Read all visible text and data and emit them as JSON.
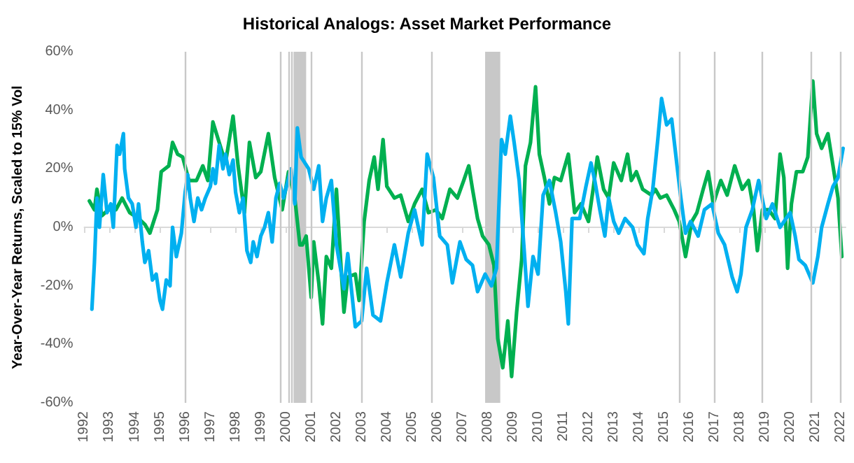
{
  "chart_data": {
    "type": "line",
    "title": "Historical Analogs: Asset Market Performance",
    "ylabel": "Year-Over-Year Returns, Scaled to 15% Vol",
    "xlim": [
      1992,
      2022.2
    ],
    "xticks": [
      1992,
      1993,
      1994,
      1995,
      1996,
      1997,
      1998,
      1999,
      2000,
      2001,
      2002,
      2003,
      2004,
      2005,
      2006,
      2007,
      2008,
      2009,
      2010,
      2011,
      2012,
      2013,
      2014,
      2015,
      2016,
      2017,
      2018,
      2019,
      2020,
      2021,
      2022
    ],
    "ylim": [
      -60,
      60
    ],
    "yticks": [
      {
        "value": -60,
        "label": "-60%"
      },
      {
        "value": -40,
        "label": "-40%"
      },
      {
        "value": -20,
        "label": "-20%"
      },
      {
        "value": 0,
        "label": "0%"
      },
      {
        "value": 20,
        "label": "20%"
      },
      {
        "value": 40,
        "label": "40%"
      },
      {
        "value": 60,
        "label": "60%"
      }
    ],
    "grid": false,
    "marker": "none",
    "line_style": "solid",
    "series": [
      {
        "color": "#00b050",
        "x": [
          1992.2,
          1992.4,
          1992.5,
          1992.7,
          1992.95,
          1993.25,
          1993.5,
          1993.8,
          1994.15,
          1994.4,
          1994.6,
          1994.9,
          1995.05,
          1995.35,
          1995.5,
          1995.7,
          1995.9,
          1996.15,
          1996.45,
          1996.7,
          1996.9,
          1997.1,
          1997.35,
          1997.6,
          1997.9,
          1998.1,
          1998.35,
          1998.55,
          1998.8,
          1999.0,
          1999.3,
          1999.55,
          1999.85,
          2000.1,
          2000.35,
          2000.55,
          2000.65,
          2000.8,
          2001.0,
          2001.1,
          2001.3,
          2001.45,
          2001.6,
          2001.8,
          2002.0,
          2002.2,
          2002.3,
          2002.45,
          2002.75,
          2002.9,
          2003.1,
          2003.3,
          2003.5,
          2003.65,
          2003.85,
          2004.0,
          2004.3,
          2004.55,
          2004.85,
          2005.1,
          2005.4,
          2005.65,
          2005.95,
          2006.2,
          2006.5,
          2006.8,
          2007.05,
          2007.25,
          2007.4,
          2007.6,
          2007.8,
          2008.05,
          2008.25,
          2008.4,
          2008.6,
          2008.8,
          2008.95,
          2009.15,
          2009.35,
          2009.5,
          2009.7,
          2009.9,
          2010.05,
          2010.25,
          2010.45,
          2010.65,
          2010.9,
          2011.2,
          2011.45,
          2011.7,
          2012.0,
          2012.2,
          2012.35,
          2012.6,
          2012.8,
          2013.0,
          2013.3,
          2013.55,
          2013.7,
          2013.9,
          2014.15,
          2014.5,
          2014.65,
          2014.85,
          2015.1,
          2015.4,
          2015.6,
          2015.85,
          2016.1,
          2016.3,
          2016.55,
          2016.75,
          2016.95,
          2017.25,
          2017.5,
          2017.8,
          2018.1,
          2018.35,
          2018.55,
          2018.7,
          2018.9,
          2019.15,
          2019.4,
          2019.6,
          2019.75,
          2019.9,
          2020.05,
          2020.25,
          2020.5,
          2020.7,
          2020.9,
          2021.05,
          2021.25,
          2021.5,
          2021.7,
          2021.9,
          2022.05
        ],
        "values": [
          9,
          6,
          13,
          4,
          6,
          6,
          10,
          5,
          3,
          1,
          -2,
          6,
          19,
          21,
          29,
          25,
          24,
          16,
          16,
          21,
          16,
          36,
          29,
          22,
          38,
          21,
          5,
          29,
          17,
          19,
          32,
          17,
          6,
          19,
          10,
          -6,
          -6,
          -3,
          -24,
          -5,
          -19,
          -33,
          -10,
          -14,
          13,
          -16,
          -29,
          -17,
          -16,
          -25,
          2,
          16,
          24,
          13,
          30,
          14,
          10,
          11,
          2,
          8,
          13,
          5,
          6,
          3,
          13,
          10,
          16,
          21,
          13,
          3,
          -3,
          -6,
          -13,
          -38,
          -48,
          -32,
          -51,
          -29,
          -11,
          21,
          29,
          48,
          25,
          17,
          8,
          17,
          16,
          25,
          5,
          8,
          2,
          14,
          24,
          13,
          10,
          22,
          16,
          25,
          16,
          19,
          13,
          11,
          13,
          10,
          11,
          6,
          2,
          -10,
          2,
          5,
          13,
          19,
          8,
          16,
          11,
          21,
          13,
          16,
          6,
          -8,
          6,
          6,
          3,
          25,
          17,
          -14,
          8,
          19,
          19,
          24,
          50,
          32,
          27,
          32,
          21,
          10,
          -10
        ]
      },
      {
        "color": "#00b0f0",
        "x": [
          1992.3,
          1992.4,
          1992.5,
          1992.6,
          1992.75,
          1992.9,
          1993.05,
          1993.15,
          1993.3,
          1993.4,
          1993.55,
          1993.6,
          1993.75,
          1993.9,
          1994.05,
          1994.15,
          1994.3,
          1994.4,
          1994.55,
          1994.7,
          1994.85,
          1995.0,
          1995.1,
          1995.25,
          1995.4,
          1995.5,
          1995.65,
          1995.75,
          1995.85,
          1996.0,
          1996.1,
          1996.2,
          1996.35,
          1996.5,
          1996.65,
          1996.8,
          1997.0,
          1997.1,
          1997.2,
          1997.35,
          1997.5,
          1997.6,
          1997.75,
          1997.9,
          1998.0,
          1998.15,
          1998.3,
          1998.45,
          1998.6,
          1998.7,
          1998.85,
          1999.0,
          1999.15,
          1999.3,
          1999.45,
          1999.6,
          1999.75,
          1999.9,
          2000.05,
          2000.2,
          2000.35,
          2000.45,
          2000.6,
          2000.9,
          2001.1,
          2001.3,
          2001.45,
          2001.6,
          2001.8,
          2002.0,
          2002.3,
          2002.45,
          2002.75,
          2003.0,
          2003.2,
          2003.45,
          2003.75,
          2004.0,
          2004.3,
          2004.55,
          2004.85,
          2005.1,
          2005.4,
          2005.6,
          2005.85,
          2006.1,
          2006.4,
          2006.6,
          2006.9,
          2007.15,
          2007.4,
          2007.6,
          2007.9,
          2008.15,
          2008.35,
          2008.55,
          2008.7,
          2008.9,
          2009.05,
          2009.25,
          2009.45,
          2009.6,
          2009.8,
          2010.0,
          2010.2,
          2010.45,
          2010.7,
          2010.9,
          2011.1,
          2011.2,
          2011.35,
          2011.65,
          2011.9,
          2012.1,
          2012.25,
          2012.45,
          2012.65,
          2012.8,
          2013.0,
          2013.2,
          2013.45,
          2013.75,
          2013.95,
          2014.2,
          2014.35,
          2014.55,
          2014.75,
          2014.9,
          2015.1,
          2015.3,
          2015.5,
          2015.65,
          2015.85,
          2016.05,
          2016.35,
          2016.6,
          2016.9,
          2017.15,
          2017.4,
          2017.7,
          2017.9,
          2018.05,
          2018.25,
          2018.5,
          2018.75,
          2019.05,
          2019.3,
          2019.6,
          2020.0,
          2020.2,
          2020.35,
          2020.6,
          2020.9,
          2021.1,
          2021.25,
          2021.5,
          2021.7,
          2021.9,
          2022.1
        ],
        "values": [
          -28,
          -12,
          10,
          0,
          18,
          5,
          8,
          0,
          28,
          25,
          32,
          20,
          10,
          8,
          0,
          8,
          -5,
          -12,
          -8,
          -18,
          -16,
          -25,
          -28,
          -18,
          -20,
          0,
          -10,
          -6,
          -2,
          12,
          18,
          10,
          2,
          10,
          6,
          10,
          14,
          20,
          15,
          28,
          20,
          25,
          18,
          23,
          12,
          5,
          10,
          -8,
          -12,
          -5,
          -10,
          -3,
          0,
          5,
          -5,
          10,
          15,
          10,
          15,
          20,
          8,
          34,
          24,
          20,
          13,
          21,
          2,
          10,
          16,
          -6,
          -21,
          -9,
          -34,
          -32,
          -14,
          -30,
          -32,
          -19,
          -6,
          -17,
          -2,
          6,
          -6,
          25,
          17,
          -3,
          -6,
          -19,
          -5,
          -11,
          -13,
          -22,
          -16,
          -20,
          -14,
          30,
          25,
          38,
          29,
          16,
          -8,
          -27,
          -10,
          -16,
          11,
          16,
          5,
          -5,
          -22,
          -33,
          3,
          3,
          14,
          22,
          16,
          6,
          -3,
          10,
          2,
          -2,
          3,
          0,
          -6,
          -9,
          3,
          13,
          30,
          44,
          35,
          37,
          22,
          11,
          -2,
          2,
          -3,
          6,
          8,
          -2,
          -6,
          -17,
          -22,
          -16,
          0,
          6,
          16,
          3,
          8,
          0,
          5,
          -3,
          -11,
          -13,
          -19,
          -10,
          0,
          8,
          14,
          17,
          27
        ]
      }
    ],
    "ref_lines": [
      {
        "axis": "x",
        "value": 1996.0,
        "color": "#c8c8c8"
      },
      {
        "axis": "x",
        "value": 1999.8,
        "color": "#c8c8c8"
      },
      {
        "axis": "x",
        "value": 2000.1,
        "color": "#c8c8c8"
      },
      {
        "axis": "x",
        "value": 2000.2,
        "color": "#c8c8c8"
      },
      {
        "axis": "x",
        "value": 2001.0,
        "color": "#c8c8c8"
      },
      {
        "axis": "x",
        "value": 2003.0,
        "color": "#c8c8c8"
      },
      {
        "axis": "x",
        "value": 2005.8,
        "color": "#c8c8c8"
      },
      {
        "axis": "x",
        "value": 2015.6,
        "color": "#c8c8c8"
      },
      {
        "axis": "x",
        "value": 2017.0,
        "color": "#c8c8c8"
      },
      {
        "axis": "x",
        "value": 2018.9,
        "color": "#c8c8c8"
      },
      {
        "axis": "x",
        "value": 2020.8,
        "color": "#c8c8c8"
      },
      {
        "axis": "x",
        "value": 2022.0,
        "color": "#c8c8c8"
      }
    ],
    "bands": [
      {
        "axis": "x",
        "from": 2000.3,
        "to": 2000.8,
        "color": "#c8c8c8"
      },
      {
        "axis": "x",
        "from": 2007.9,
        "to": 2008.5,
        "color": "#c8c8c8"
      }
    ]
  }
}
